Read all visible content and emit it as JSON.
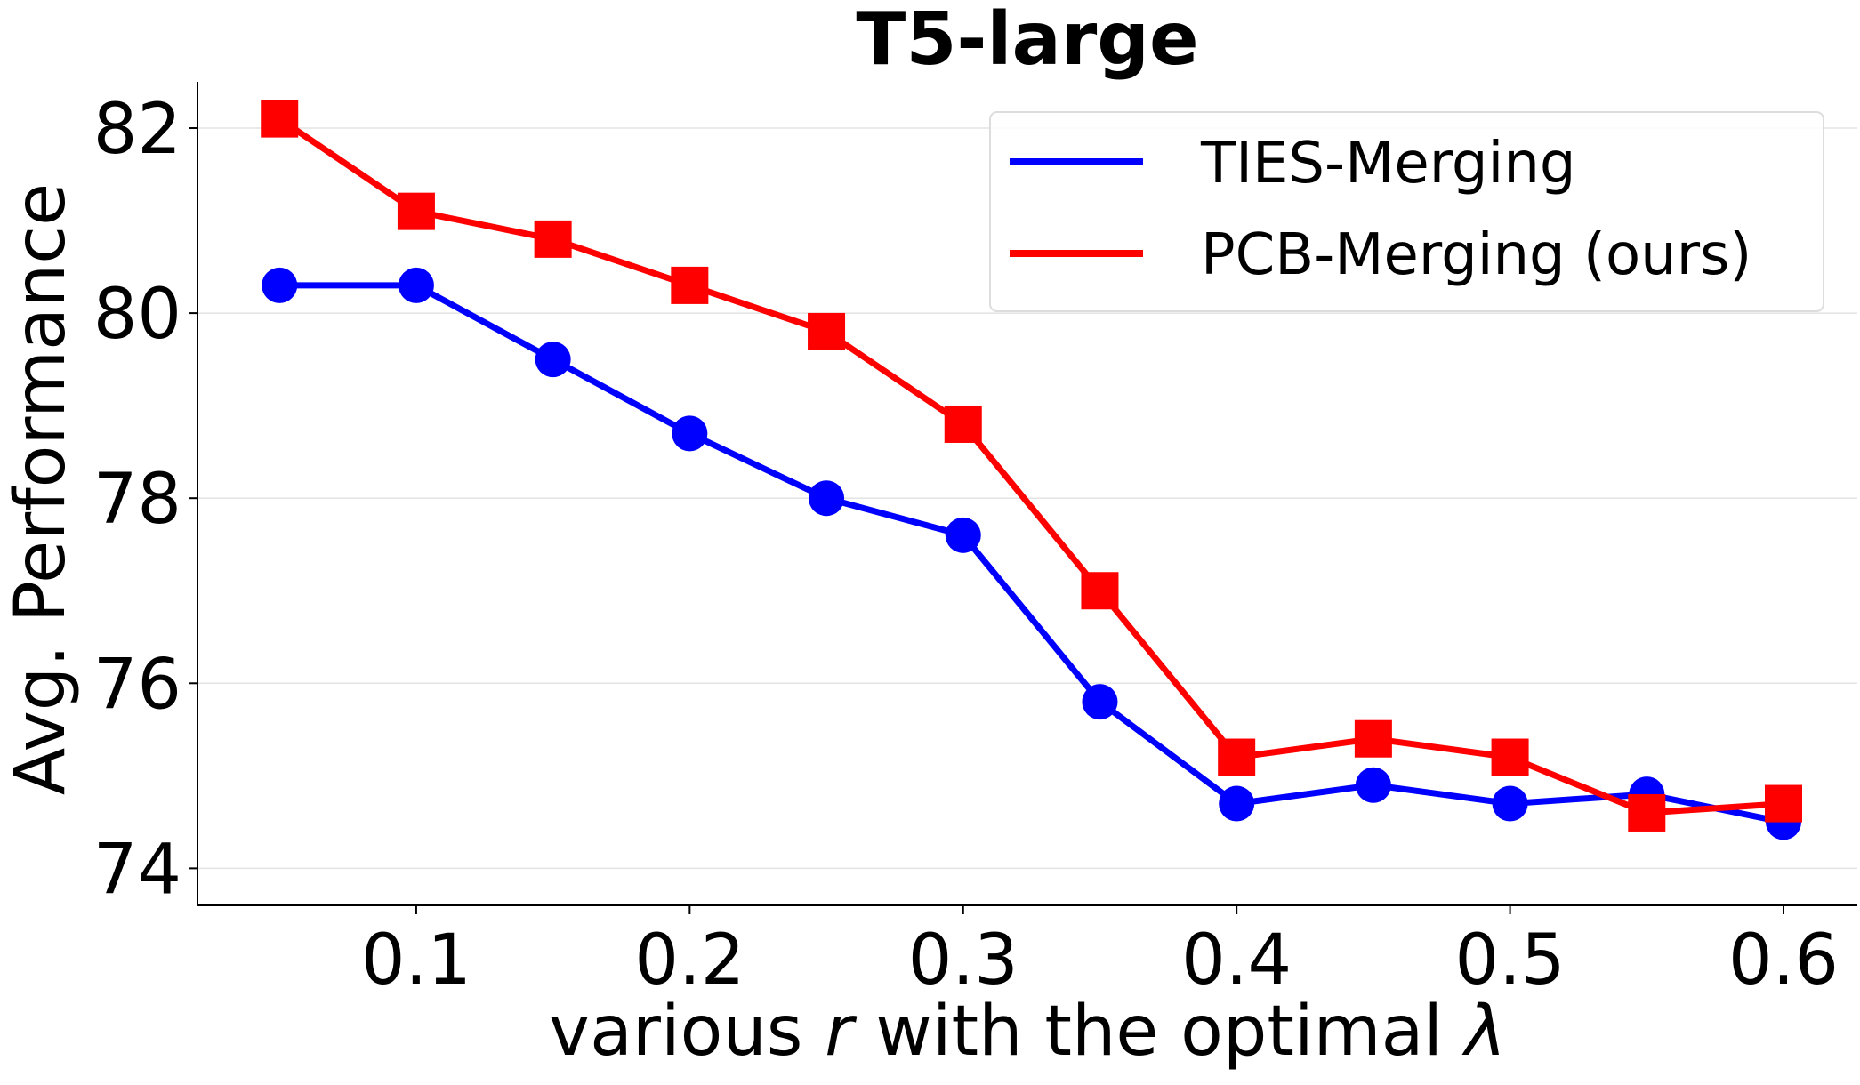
{
  "chart_data": {
    "type": "line",
    "title": "T5-large",
    "xlabel": {
      "prefix": "various ",
      "variable": "r",
      "middle": " with the optimal ",
      "symbol": "λ"
    },
    "ylabel": "Avg. Performance",
    "x": [
      0.05,
      0.1,
      0.15,
      0.2,
      0.25,
      0.3,
      0.35,
      0.4,
      0.45,
      0.5,
      0.55,
      0.6
    ],
    "xticks": [
      0.1,
      0.2,
      0.3,
      0.4,
      0.5,
      0.6
    ],
    "xtick_labels": [
      "0.1",
      "0.2",
      "0.3",
      "0.4",
      "0.5",
      "0.6"
    ],
    "yticks": [
      74,
      76,
      78,
      80,
      82
    ],
    "ytick_labels": [
      "74",
      "76",
      "78",
      "80",
      "82"
    ],
    "xlim": [
      0.02,
      0.627
    ],
    "ylim": [
      73.6,
      82.5
    ],
    "grid": "horizontal",
    "legend_position": "top-right",
    "series": [
      {
        "name": "TIES-Merging",
        "color": "#0000ff",
        "marker": "circle",
        "values": [
          80.3,
          80.3,
          79.5,
          78.7,
          78.0,
          77.6,
          75.8,
          74.7,
          74.9,
          74.7,
          74.8,
          74.5
        ]
      },
      {
        "name": "PCB-Merging (ours)",
        "color": "#ff0000",
        "marker": "square",
        "values": [
          82.1,
          81.1,
          80.8,
          80.3,
          79.8,
          78.8,
          77.0,
          75.2,
          75.4,
          75.2,
          74.6,
          74.7
        ]
      }
    ]
  }
}
